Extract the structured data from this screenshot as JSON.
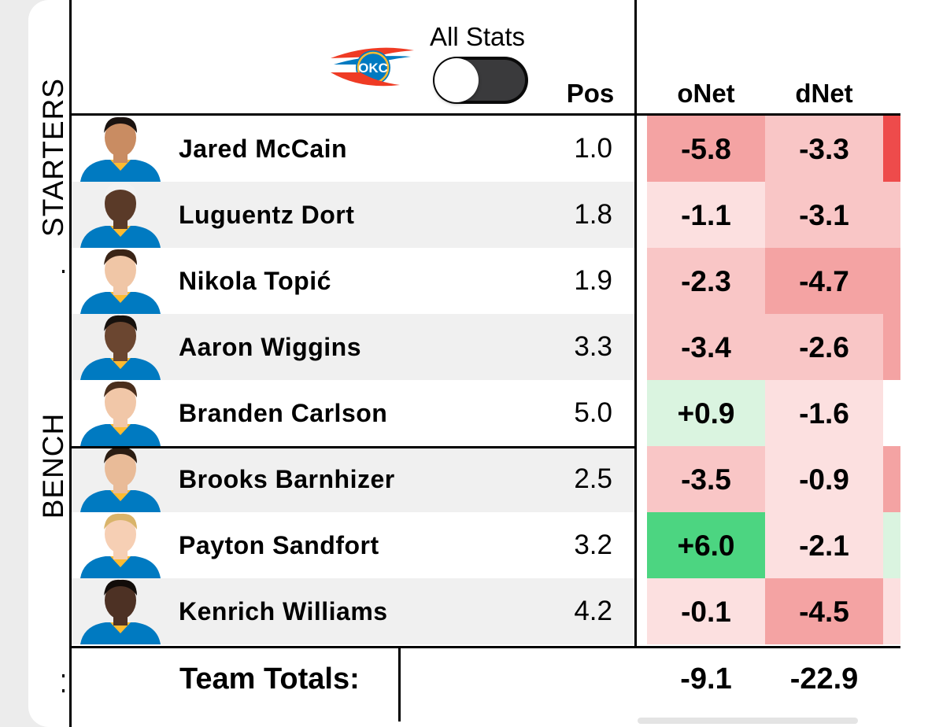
{
  "header": {
    "all_stats_label": "All Stats",
    "toggle_on": false,
    "columns": {
      "pos": "Pos",
      "onet": "oNet",
      "dnet": "dNet"
    }
  },
  "sections": {
    "starters": "STARTERS",
    "bench": "BENCH"
  },
  "players": [
    {
      "name": "Jared McCain",
      "pos": "1.0",
      "onet": "-5.8",
      "dnet": "-3.3"
    },
    {
      "name": "Luguentz Dort",
      "pos": "1.8",
      "onet": "-1.1",
      "dnet": "-3.1"
    },
    {
      "name": "Nikola Topić",
      "pos": "1.9",
      "onet": "-2.3",
      "dnet": "-4.7"
    },
    {
      "name": "Aaron Wiggins",
      "pos": "3.3",
      "onet": "-3.4",
      "dnet": "-2.6"
    },
    {
      "name": "Branden Carlson",
      "pos": "5.0",
      "onet": "+0.9",
      "dnet": "-1.6"
    },
    {
      "name": "Brooks Barnhizer",
      "pos": "2.5",
      "onet": "-3.5",
      "dnet": "-0.9"
    },
    {
      "name": "Payton Sandfort",
      "pos": "3.2",
      "onet": "+6.0",
      "dnet": "-2.1"
    },
    {
      "name": "Kenrich Williams",
      "pos": "4.2",
      "onet": "-0.1",
      "dnet": "-4.5"
    }
  ],
  "totals": {
    "label": "Team Totals:",
    "onet": "-9.1",
    "dnet": "-22.9"
  },
  "colors": {
    "negative_strong": "#f4a3a3",
    "negative_medium": "#f9c6c6",
    "negative_light": "#fce0e0",
    "positive_light": "#daf4e0",
    "positive_strong": "#4cd581",
    "edge_red": "#ee4b4b",
    "team_blue": "#007ac1",
    "team_orange": "#ef3b24"
  }
}
